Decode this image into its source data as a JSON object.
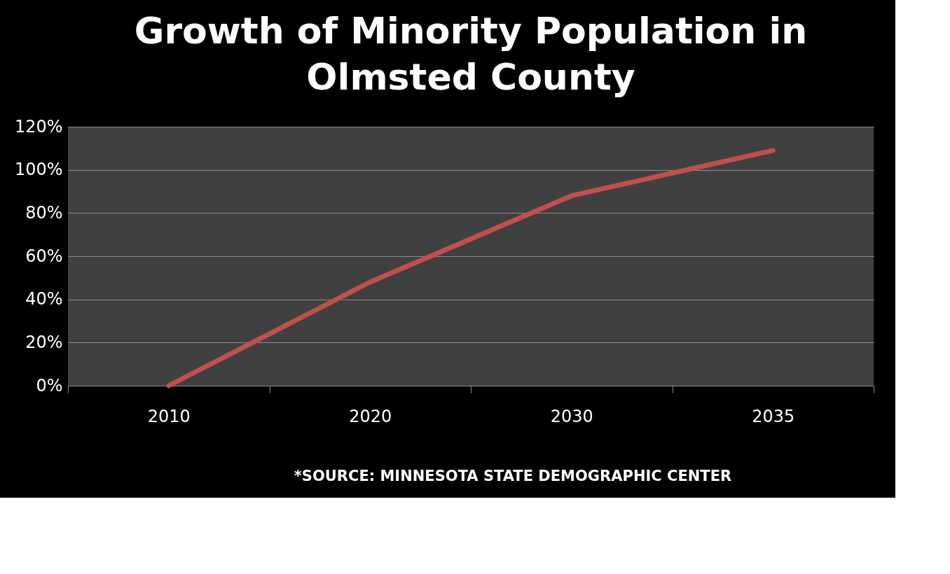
{
  "chart_data": {
    "type": "line",
    "title": "Growth of Minority Population in Olmsted County",
    "categories": [
      "2010",
      "2020",
      "2030",
      "2035"
    ],
    "series": [
      {
        "color": "#c0504d",
        "values": [
          0,
          48,
          88,
          109
        ]
      }
    ],
    "ylim": [
      0,
      120
    ],
    "yticks": [
      {
        "value": 0,
        "label": "0%"
      },
      {
        "value": 20,
        "label": "20%"
      },
      {
        "value": 40,
        "label": "40%"
      },
      {
        "value": 60,
        "label": "60%"
      },
      {
        "value": 80,
        "label": "80%"
      },
      {
        "value": 100,
        "label": "100%"
      },
      {
        "value": 120,
        "label": "120%"
      }
    ],
    "grid": "y",
    "marker": "none",
    "line_style": "solid",
    "annotations": [
      "*SOURCE:  MINNESOTA STATE DEMOGRAPHIC CENTER"
    ]
  }
}
